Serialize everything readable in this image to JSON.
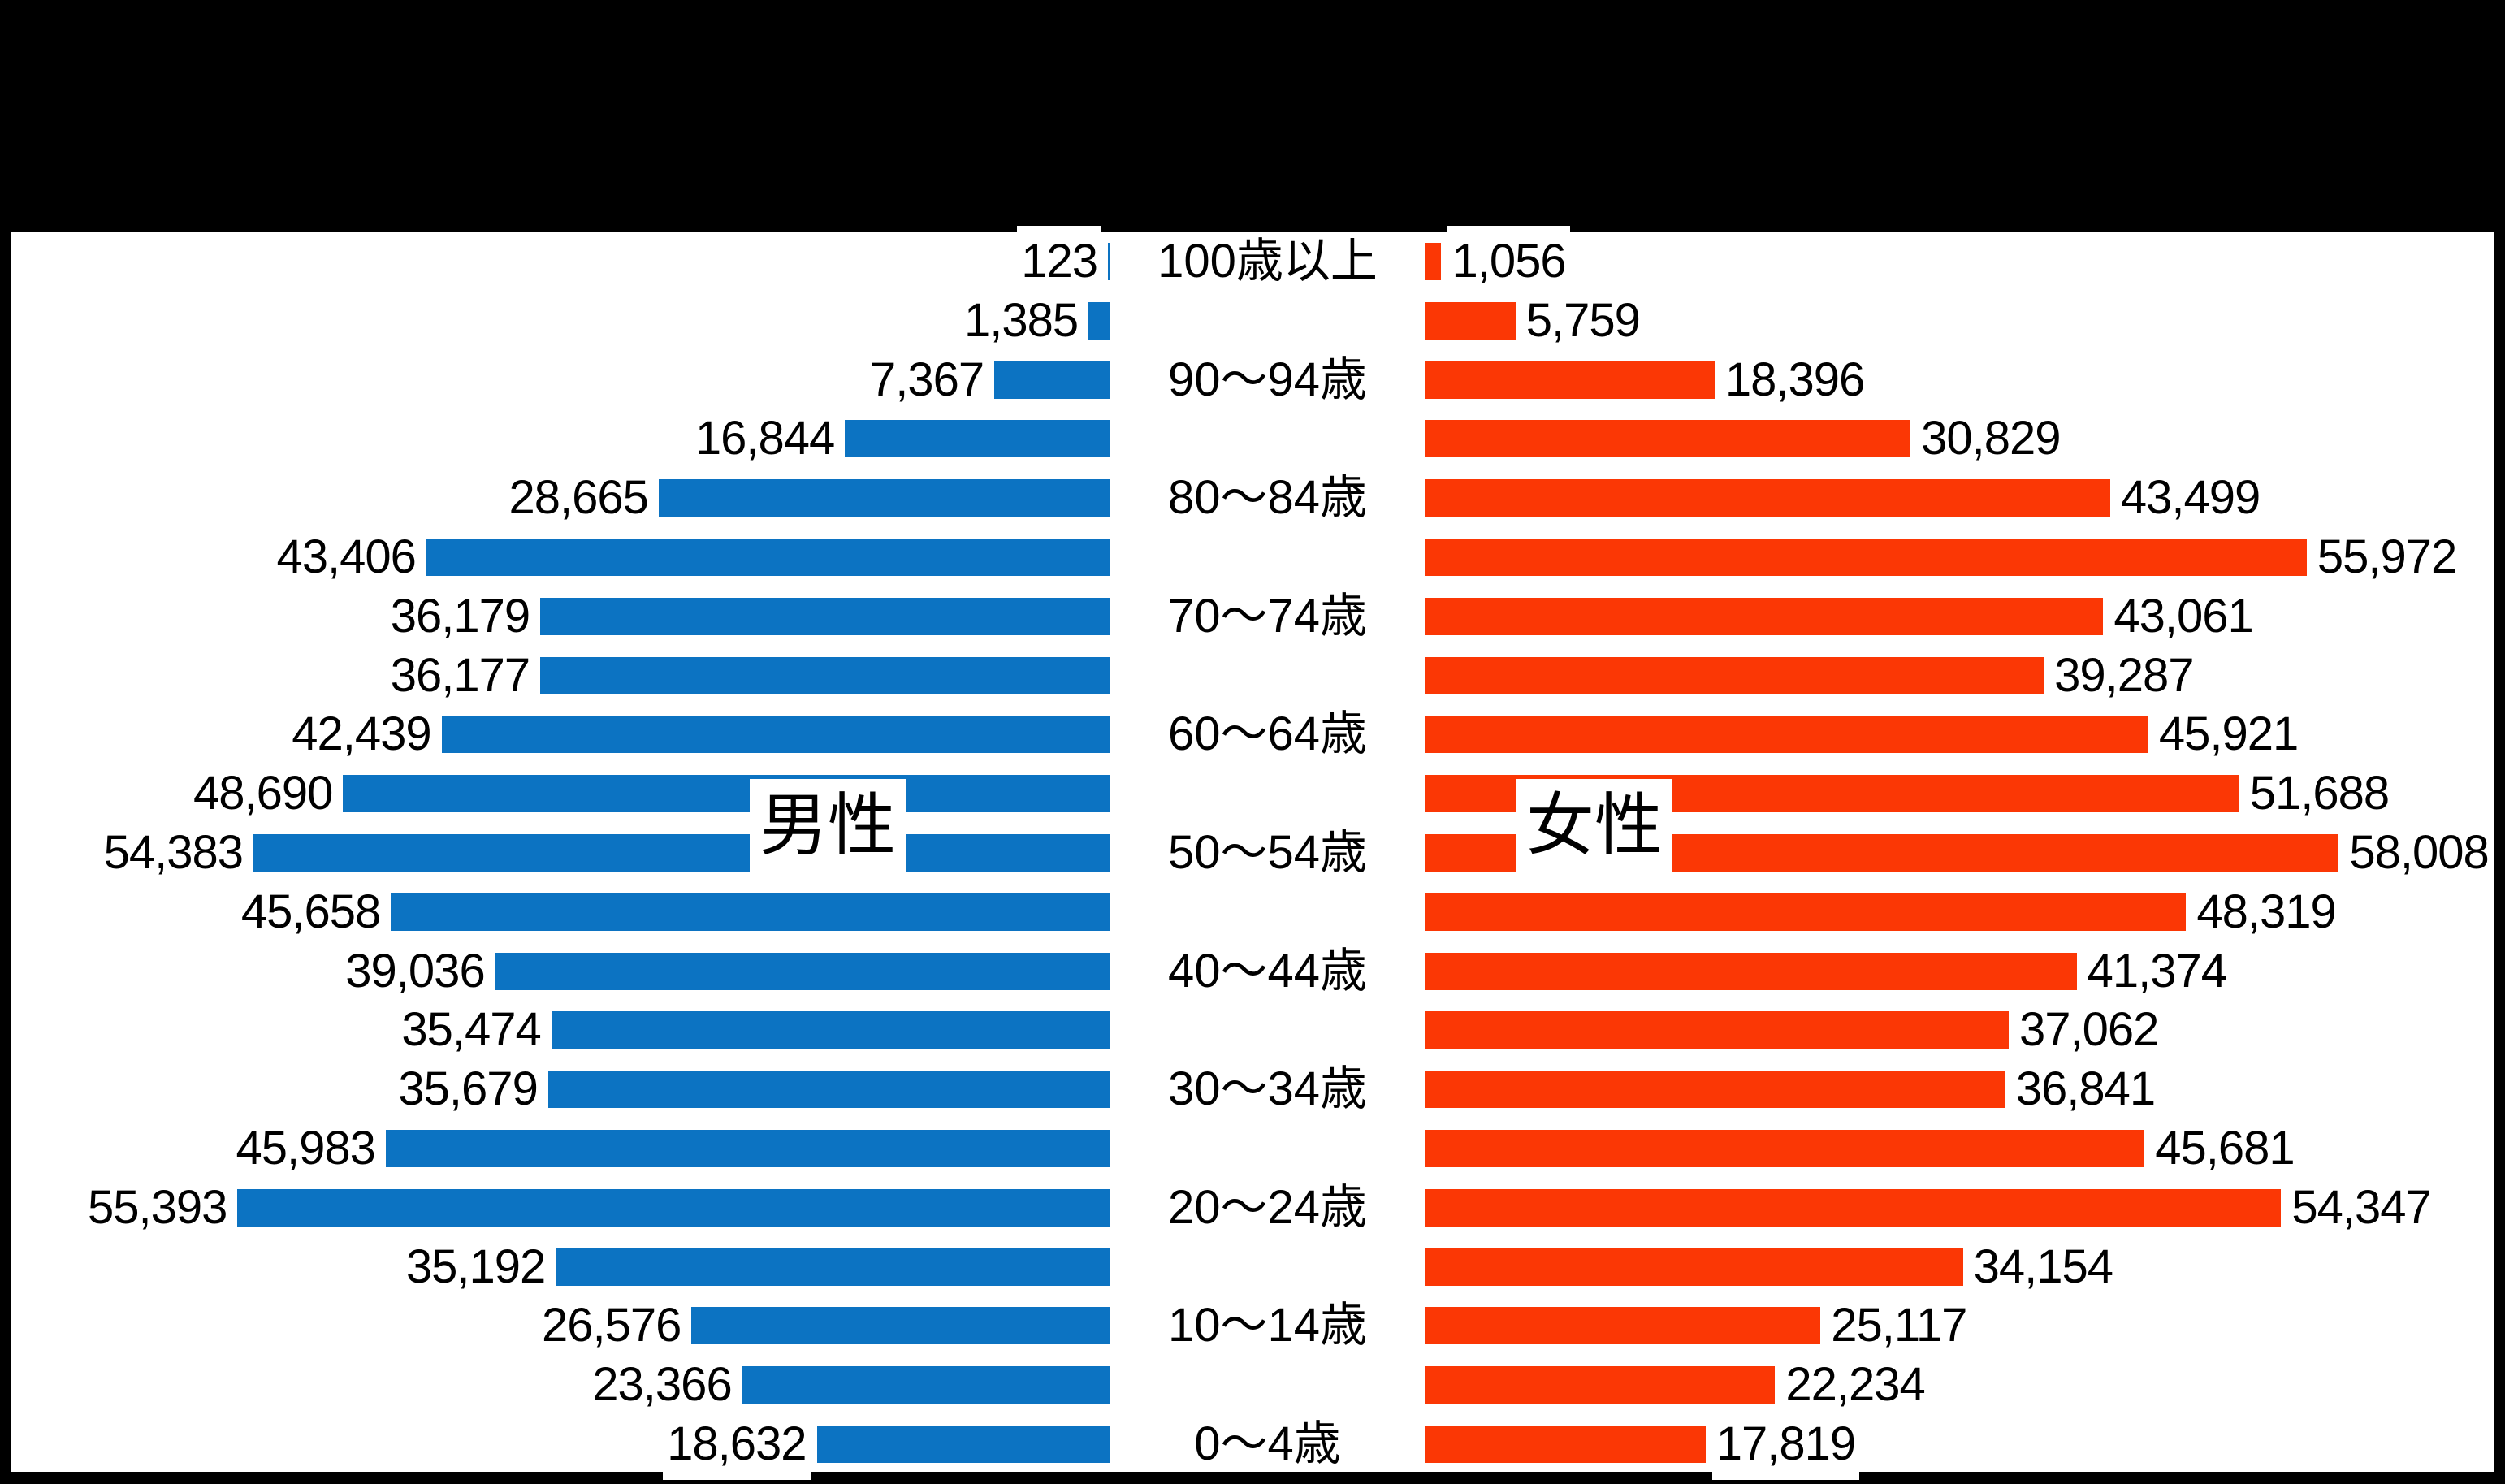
{
  "canvas": {
    "background_color": "#000000",
    "plot_background_color": "#ffffff"
  },
  "chart_data": {
    "type": "bar",
    "orientation": "horizontal",
    "layout": "population-pyramid",
    "title": "",
    "categories_visible": [
      "100歳以上",
      "",
      "90〜94歳",
      "",
      "80〜84歳",
      "",
      "70〜74歳",
      "",
      "60〜64歳",
      "",
      "50〜54歳",
      "",
      "40〜44歳",
      "",
      "30〜34歳",
      "",
      "20〜24歳",
      "",
      "10〜14歳",
      "",
      "0〜4歳"
    ],
    "series": [
      {
        "name": "男性",
        "side": "left",
        "color": "#0C73C2",
        "values": [
          123,
          1385,
          7367,
          16844,
          28665,
          43406,
          36179,
          36177,
          42439,
          48690,
          54383,
          45658,
          39036,
          35474,
          35679,
          45983,
          55393,
          35192,
          26576,
          23366,
          18632
        ]
      },
      {
        "name": "女性",
        "side": "right",
        "color": "#FB3705",
        "values": [
          1056,
          5759,
          18396,
          30829,
          43499,
          55972,
          43061,
          39287,
          45921,
          51688,
          58008,
          48319,
          41374,
          37062,
          36841,
          45681,
          54347,
          34154,
          25117,
          22234,
          17819
        ]
      }
    ],
    "value_label_format": "#,##0",
    "axis": {
      "max_estimated": 60000,
      "gridlines": false,
      "axis_tick_labels_shown": false
    },
    "legend": {
      "shown": false,
      "series_name_boxes_on_chart": true
    }
  }
}
